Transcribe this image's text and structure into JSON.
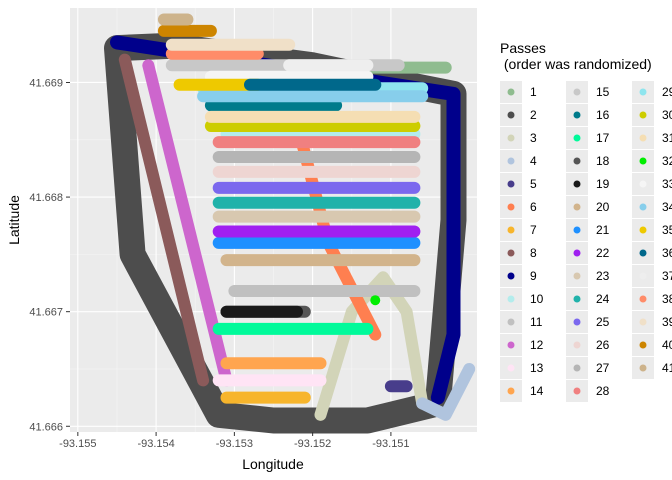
{
  "chart_data": {
    "type": "scatter",
    "title": "",
    "xlabel": "Longitude",
    "ylabel": "Latitude",
    "xlim": [
      -93.1551,
      -93.1499
    ],
    "ylim": [
      41.66595,
      41.66965
    ],
    "x_ticks": [
      -93.155,
      -93.154,
      -93.153,
      -93.152,
      -93.151
    ],
    "x_tick_labels": [
      "-93.155",
      "-93.154",
      "-93.153",
      "-93.152",
      "-93.151"
    ],
    "y_ticks": [
      41.666,
      41.667,
      41.668,
      41.669
    ],
    "y_tick_labels": [
      "41.666",
      "41.667",
      "41.668",
      "41.669"
    ],
    "grid": true,
    "legend": {
      "title_line1": "Passes",
      "title_line2": " (order was randomized)",
      "placement": "right",
      "columns": 3
    },
    "series": [
      {
        "name": "1",
        "color": "#8fbc8f",
        "x": [
          -93.1513,
          -93.1503
        ],
        "y": [
          41.66913,
          41.66913
        ]
      },
      {
        "name": "2",
        "color": "#4d4d4d",
        "x": [
          -93.1545,
          -93.1538,
          -93.1531,
          -93.152,
          -93.1513,
          -93.1502,
          -93.1502,
          -93.1504,
          -93.1513,
          -93.152,
          -93.1525,
          -93.1532,
          -93.1543,
          -93.1545
        ],
        "y": [
          41.6693,
          41.66932,
          41.66925,
          41.66915,
          41.66905,
          41.6689,
          41.6678,
          41.6662,
          41.66605,
          41.66605,
          41.66605,
          41.6661,
          41.6675,
          41.6693
        ]
      },
      {
        "name": "3",
        "color": "#d2d4b8",
        "x": [
          -93.1519,
          -93.1515,
          -93.1511,
          -93.1508,
          -93.1506
        ],
        "y": [
          41.6661,
          41.667,
          41.6673,
          41.667,
          41.6662
        ]
      },
      {
        "name": "4",
        "color": "#b0c4de",
        "x": [
          -93.1506,
          -93.1503,
          -93.15
        ],
        "y": [
          41.6662,
          41.6661,
          41.6665
        ]
      },
      {
        "name": "5",
        "color": "#483d8b",
        "x": [
          -93.151,
          -93.1508
        ],
        "y": [
          41.66635,
          41.66635
        ]
      },
      {
        "name": "6",
        "color": "#ff7f50",
        "x": [
          -93.1531,
          -93.1527,
          -93.1523,
          -93.1518,
          -93.1512
        ],
        "y": [
          41.6691,
          41.669,
          41.6689,
          41.6676,
          41.6668
        ]
      },
      {
        "name": "7",
        "color": "#f7b52c",
        "x": [
          -93.1531,
          -93.1521
        ],
        "y": [
          41.66625,
          41.66625
        ]
      },
      {
        "name": "8",
        "color": "#8b5a5a",
        "x": [
          -93.1544,
          -93.1534
        ],
        "y": [
          41.6692,
          41.6664
        ]
      },
      {
        "name": "9",
        "color": "#00008b",
        "x": [
          -93.1545,
          -93.1502,
          -93.1502,
          -93.1504
        ],
        "y": [
          41.66935,
          41.6689,
          41.6668,
          41.66625
        ]
      },
      {
        "name": "10",
        "color": "#b3ecec",
        "x": [
          -93.1531,
          -93.1507
        ],
        "y": [
          41.66855,
          41.66855
        ]
      },
      {
        "name": "11",
        "color": "#c0c0c0",
        "x": [
          -93.153,
          -93.1507
        ],
        "y": [
          41.66718,
          41.66718
        ]
      },
      {
        "name": "12",
        "color": "#cd66cd",
        "x": [
          -93.1541,
          -93.1531
        ],
        "y": [
          41.66915,
          41.6664
        ]
      },
      {
        "name": "13",
        "color": "#ffe4f5",
        "x": [
          -93.1532,
          -93.1519
        ],
        "y": [
          41.6664,
          41.6664
        ]
      },
      {
        "name": "14",
        "color": "#ffa54f",
        "x": [
          -93.1531,
          -93.1519
        ],
        "y": [
          41.66655,
          41.66655
        ]
      },
      {
        "name": "15",
        "color": "#c8c8c8",
        "x": [
          -93.1538,
          -93.1509
        ],
        "y": [
          41.66915,
          41.66915
        ]
      },
      {
        "name": "16",
        "color": "#007b8b",
        "x": [
          -93.1533,
          -93.1517
        ],
        "y": [
          41.6688,
          41.6688
        ]
      },
      {
        "name": "17",
        "color": "#00fa9a",
        "x": [
          -93.1532,
          -93.1513
        ],
        "y": [
          41.66685,
          41.66685
        ]
      },
      {
        "name": "18",
        "color": "#555555",
        "x": [
          -93.1531,
          -93.1521
        ],
        "y": [
          41.667,
          41.667
        ]
      },
      {
        "name": "19",
        "color": "#1a1a1a",
        "x": [
          -93.1531,
          -93.1522
        ],
        "y": [
          41.667,
          41.667
        ]
      },
      {
        "name": "20",
        "color": "#d2b48c",
        "x": [
          -93.1531,
          -93.1507
        ],
        "y": [
          41.66745,
          41.66745
        ]
      },
      {
        "name": "21",
        "color": "#1e90ff",
        "x": [
          -93.1532,
          -93.1507
        ],
        "y": [
          41.6676,
          41.6676
        ]
      },
      {
        "name": "22",
        "color": "#a020f0",
        "x": [
          -93.1532,
          -93.1507
        ],
        "y": [
          41.6677,
          41.6677
        ]
      },
      {
        "name": "23",
        "color": "#d8c8b0",
        "x": [
          -93.1532,
          -93.1507
        ],
        "y": [
          41.66783,
          41.66783
        ]
      },
      {
        "name": "24",
        "color": "#20b2aa",
        "x": [
          -93.1532,
          -93.1507
        ],
        "y": [
          41.66795,
          41.66795
        ]
      },
      {
        "name": "25",
        "color": "#7b68ee",
        "x": [
          -93.1532,
          -93.1507
        ],
        "y": [
          41.66808,
          41.66808
        ]
      },
      {
        "name": "26",
        "color": "#eed5d2",
        "x": [
          -93.1532,
          -93.1507
        ],
        "y": [
          41.66822,
          41.66822
        ]
      },
      {
        "name": "27",
        "color": "#b5b5b5",
        "x": [
          -93.1532,
          -93.1507
        ],
        "y": [
          41.66835,
          41.66835
        ]
      },
      {
        "name": "28",
        "color": "#f08080",
        "x": [
          -93.1532,
          -93.1507
        ],
        "y": [
          41.66848,
          41.66848
        ]
      },
      {
        "name": "29",
        "color": "#8ee5ee",
        "x": [
          -93.1534,
          -93.1506
        ],
        "y": [
          41.66895,
          41.66895
        ]
      },
      {
        "name": "30",
        "color": "#cdcd00",
        "x": [
          -93.1533,
          -93.1507
        ],
        "y": [
          41.66862,
          41.66862
        ]
      },
      {
        "name": "31",
        "color": "#f5deb3",
        "x": [
          -93.1533,
          -93.1507
        ],
        "y": [
          41.6687,
          41.6687
        ]
      },
      {
        "name": "32",
        "color": "#00ee00",
        "x": [
          -93.1512
        ],
        "y": [
          41.6671
        ]
      },
      {
        "name": "33",
        "color": "#f5f5f5",
        "x": [
          -93.1533,
          -93.1513
        ],
        "y": [
          41.66905,
          41.66905
        ]
      },
      {
        "name": "34",
        "color": "#87ceeb",
        "x": [
          -93.1534,
          -93.1506
        ],
        "y": [
          41.66888,
          41.66888
        ]
      },
      {
        "name": "35",
        "color": "#eec900",
        "x": [
          -93.1537,
          -93.1527
        ],
        "y": [
          41.66898,
          41.66898
        ]
      },
      {
        "name": "36",
        "color": "#00688b",
        "x": [
          -93.1528,
          -93.1512
        ],
        "y": [
          41.66898,
          41.66898
        ]
      },
      {
        "name": "37",
        "color": "#eeeeee",
        "x": [
          -93.1523,
          -93.1513
        ],
        "y": [
          41.66915,
          41.66915
        ]
      },
      {
        "name": "38",
        "color": "#ff8c69",
        "x": [
          -93.1538,
          -93.1527
        ],
        "y": [
          41.66925,
          41.66925
        ]
      },
      {
        "name": "39",
        "color": "#f0e0c8",
        "x": [
          -93.1538,
          -93.1523
        ],
        "y": [
          41.66933,
          41.66933
        ]
      },
      {
        "name": "40",
        "color": "#cd8500",
        "x": [
          -93.1539,
          -93.1533
        ],
        "y": [
          41.66945,
          41.66945
        ]
      },
      {
        "name": "41",
        "color": "#cdb38b",
        "x": [
          -93.1539,
          -93.1536
        ],
        "y": [
          41.66955,
          41.66955
        ]
      }
    ]
  }
}
